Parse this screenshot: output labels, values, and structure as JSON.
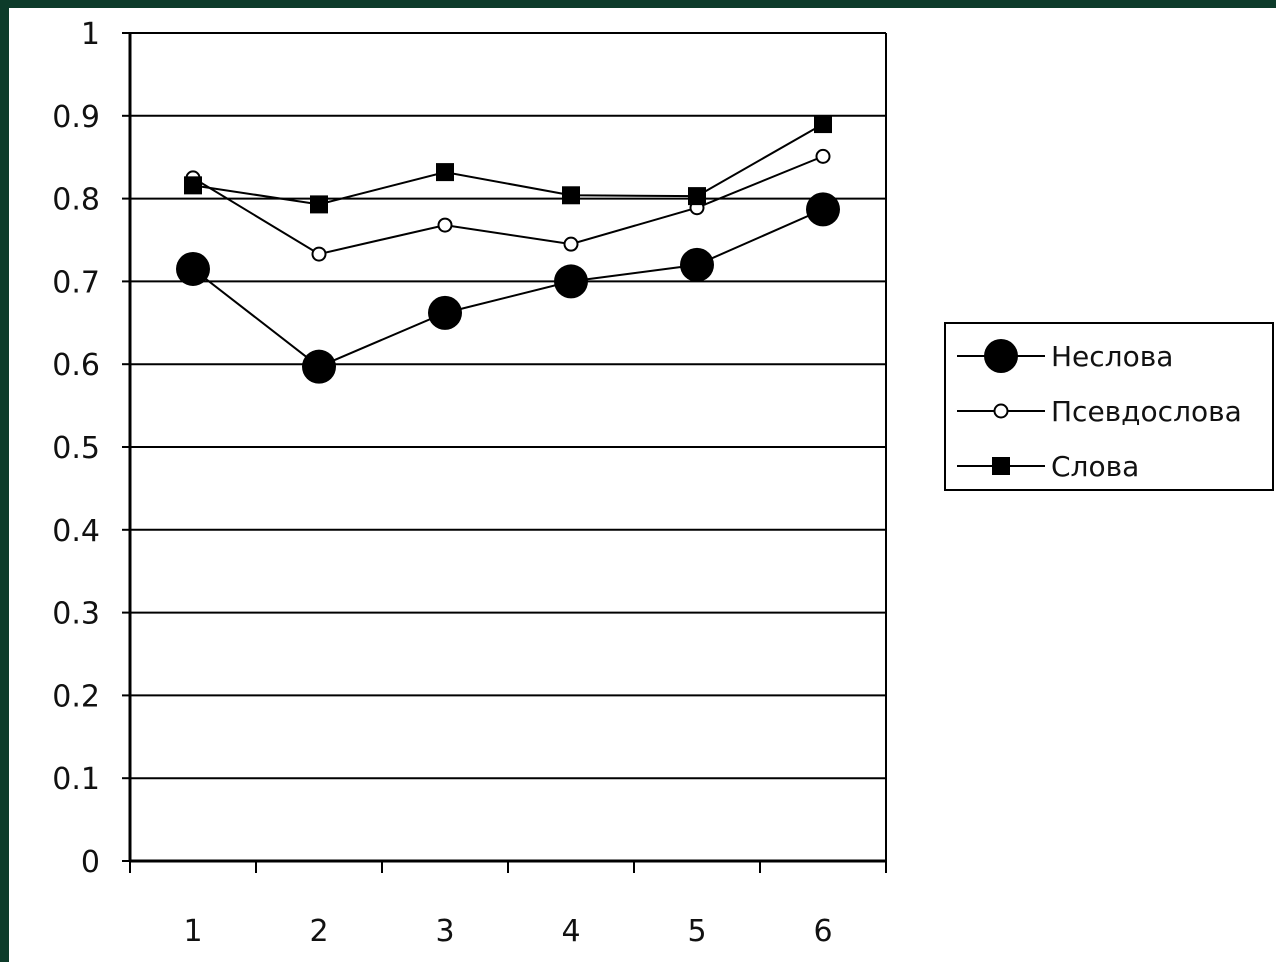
{
  "chart_data": {
    "type": "line",
    "title": "",
    "xlabel": "",
    "ylabel": "",
    "categories": [
      "1",
      "2",
      "3",
      "4",
      "5",
      "6"
    ],
    "ylim": [
      0,
      1
    ],
    "yticks": [
      "0",
      "0.1",
      "0.2",
      "0.3",
      "0.4",
      "0.5",
      "0.6",
      "0.7",
      "0.8",
      "0.9",
      "1"
    ],
    "grid": true,
    "legend_position": "right",
    "series": [
      {
        "name": "Неслова",
        "values": [
          0.715,
          0.597,
          0.662,
          0.7,
          0.72,
          0.787
        ],
        "marker": "large-filled-circle",
        "color": "#000000"
      },
      {
        "name": "Псевдослова",
        "values": [
          0.825,
          0.733,
          0.768,
          0.745,
          0.789,
          0.851
        ],
        "marker": "open-circle",
        "color": "#000000"
      },
      {
        "name": "Слова",
        "values": [
          0.816,
          0.793,
          0.832,
          0.804,
          0.803,
          0.89
        ],
        "marker": "filled-square",
        "color": "#000000"
      }
    ]
  }
}
